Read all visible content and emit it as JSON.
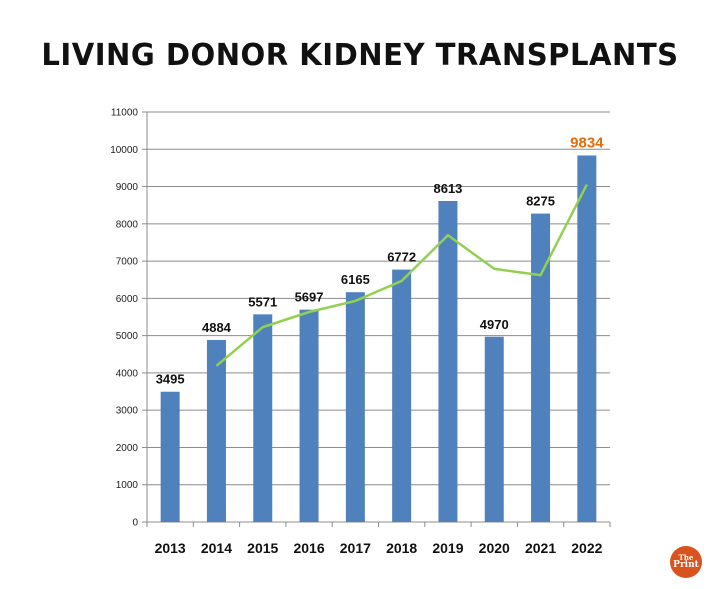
{
  "chart_data": {
    "type": "bar",
    "title": "LIVING DONOR KIDNEY TRANSPLANTS",
    "categories": [
      "2013",
      "2014",
      "2015",
      "2016",
      "2017",
      "2018",
      "2019",
      "2020",
      "2021",
      "2022"
    ],
    "series": [
      {
        "type": "bar",
        "values": [
          3495,
          4884,
          5571,
          5697,
          6165,
          6772,
          8613,
          4970,
          8275,
          9834
        ],
        "color": "#4f81bd"
      },
      {
        "type": "line",
        "values": [
          null,
          4189.5,
          5227.5,
          5634,
          5931,
          6468.5,
          7692.5,
          6791.5,
          6622.5,
          9054.5
        ],
        "color": "#92d050"
      }
    ],
    "data_labels": [
      "3495",
      "4884",
      "5571",
      "5697",
      "6165",
      "6772",
      "8613",
      "4970",
      "8275",
      "9834"
    ],
    "highlight_label_color": "#e46c0a",
    "ylim": [
      0,
      11000
    ],
    "yticks": [
      "0",
      "1000",
      "2000",
      "3000",
      "4000",
      "5000",
      "6000",
      "7000",
      "8000",
      "9000",
      "10000",
      "11000"
    ],
    "grid": true,
    "legend": "none"
  },
  "logo": {
    "line1": "The",
    "line2": "Print",
    "color": "#d9531e"
  }
}
